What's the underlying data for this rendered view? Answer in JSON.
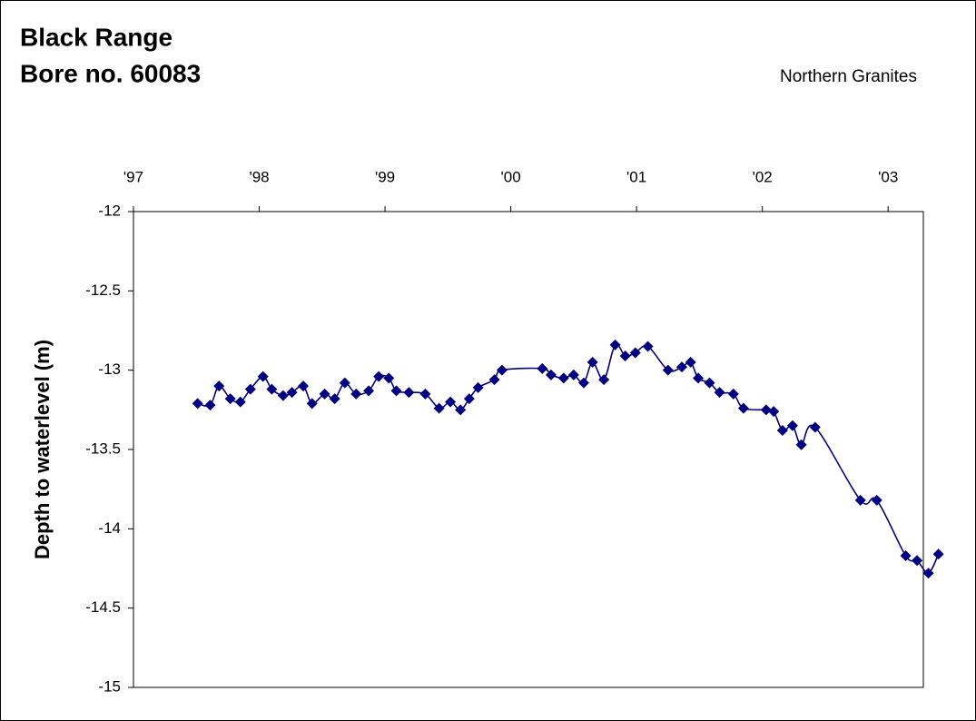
{
  "chart_data": {
    "type": "line",
    "title": "Black Range",
    "subtitle": "Bore no. 60083",
    "annotation": "Northern Granites",
    "ylabel": "Depth to waterlevel (m)",
    "xlim": [
      1997,
      2003.28
    ],
    "xticks": [
      {
        "value": 1997,
        "label": "'97"
      },
      {
        "value": 1998,
        "label": "'98"
      },
      {
        "value": 1999,
        "label": "'99"
      },
      {
        "value": 2000,
        "label": "'00"
      },
      {
        "value": 2001,
        "label": "'01"
      },
      {
        "value": 2002,
        "label": "'02"
      },
      {
        "value": 2003,
        "label": "'03"
      }
    ],
    "ylim": [
      -15,
      -12
    ],
    "yticks": [
      -12,
      -12.5,
      -13,
      -13.5,
      -14,
      -14.5,
      -15
    ],
    "grid": false,
    "x": [
      1997.51,
      1997.61,
      1997.68,
      1997.77,
      1997.85,
      1997.93,
      1998.03,
      1998.1,
      1998.19,
      1998.26,
      1998.35,
      1998.42,
      1998.52,
      1998.6,
      1998.68,
      1998.77,
      1998.87,
      1998.95,
      1999.03,
      1999.09,
      1999.19,
      1999.32,
      1999.43,
      1999.52,
      1999.6,
      1999.67,
      1999.74,
      1999.87,
      1999.93,
      2000.25,
      2000.32,
      2000.42,
      2000.5,
      2000.58,
      2000.65,
      2000.74,
      2000.83,
      2000.91,
      2000.99,
      2001.09,
      2001.25,
      2001.36,
      2001.43,
      2001.49,
      2001.58,
      2001.66,
      2001.77,
      2001.85,
      2002.03,
      2002.09,
      2002.16,
      2002.24,
      2002.31,
      2002.42,
      2002.78,
      2002.91,
      2003.14,
      2003.23,
      2003.32,
      2003.4
    ],
    "series": [
      {
        "color": "#000080",
        "values": [
          -13.21,
          -13.22,
          -13.1,
          -13.18,
          -13.2,
          -13.12,
          -13.04,
          -13.12,
          -13.16,
          -13.14,
          -13.1,
          -13.21,
          -13.15,
          -13.18,
          -13.08,
          -13.15,
          -13.13,
          -13.04,
          -13.05,
          -13.13,
          -13.14,
          -13.15,
          -13.24,
          -13.2,
          -13.25,
          -13.18,
          -13.11,
          -13.06,
          -13.0,
          -12.99,
          -13.03,
          -13.05,
          -13.03,
          -13.08,
          -12.95,
          -13.06,
          -12.84,
          -12.91,
          -12.89,
          -12.85,
          -13.0,
          -12.98,
          -12.95,
          -13.05,
          -13.08,
          -13.14,
          -13.15,
          -13.24,
          -13.25,
          -13.26,
          -13.38,
          -13.35,
          -13.47,
          -13.36,
          -13.82,
          -13.82,
          -14.17,
          -14.2,
          -14.28,
          -14.16
        ]
      }
    ]
  }
}
